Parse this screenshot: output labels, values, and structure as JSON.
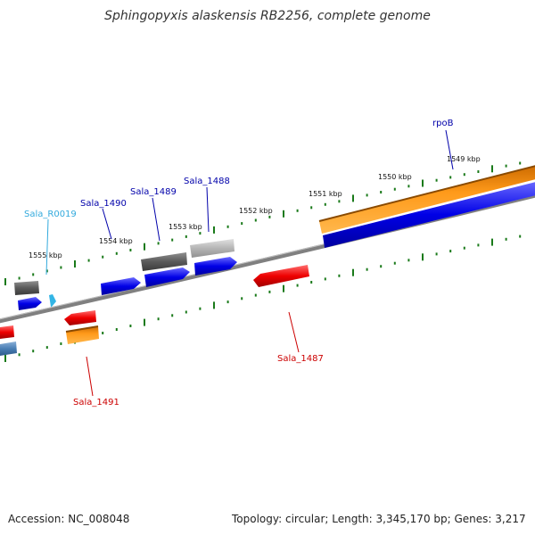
{
  "header": {
    "title": "Sphingopyxis alaskensis RB2256, complete genome"
  },
  "footer": {
    "accession": "Accession: NC_008048",
    "topology": "Topology: circular; Length: 3,345,170 bp; Genes: 3,217"
  },
  "ticks": [
    "1549 kbp",
    "1550 kbp",
    "1551 kbp",
    "1552 kbp",
    "1553 kbp",
    "1554 kbp",
    "1555 kbp"
  ],
  "genes": {
    "rpoB": "rpoB",
    "sala_1488": "Sala_1488",
    "sala_1489": "Sala_1489",
    "sala_1490": "Sala_1490",
    "sala_r0019": "Sala_R0019",
    "sala_1487": "Sala_1487",
    "sala_1491": "Sala_1491"
  },
  "colors": {
    "backbone": "#808080",
    "tick": "#1a7a1a",
    "cds_forward": "#0000e0",
    "cds_reverse": "#e00000",
    "orange": "#ff8c00",
    "gray_feature": "#606060",
    "rna": "#33b5e5",
    "forward_label": "#0000aa",
    "reverse_label": "#cc0000",
    "rna_label": "#33aadd"
  }
}
